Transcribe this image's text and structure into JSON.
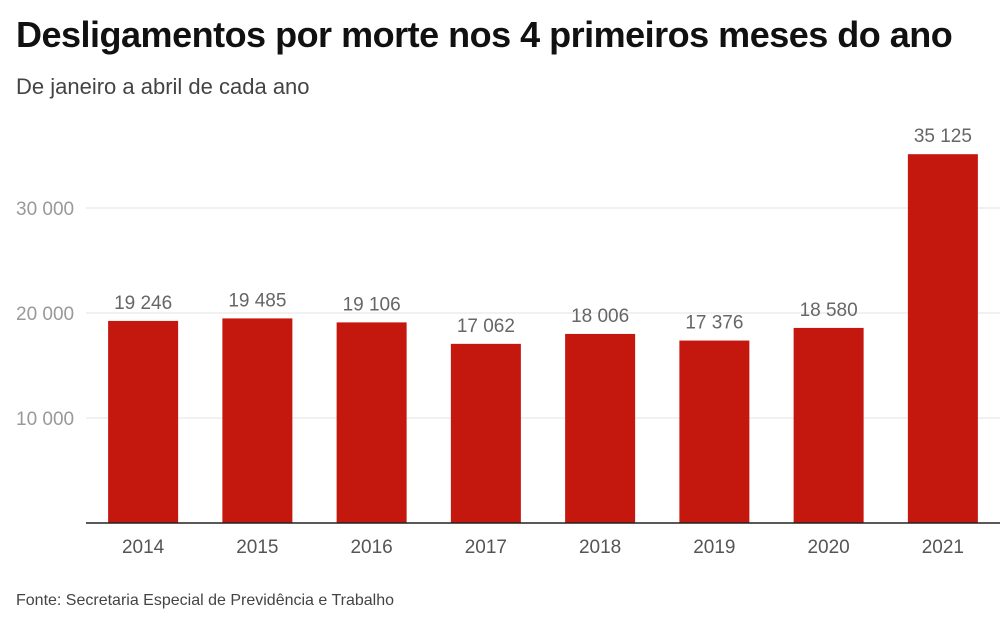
{
  "header": {
    "title": "Desligamentos por morte nos 4 primeiros meses do ano",
    "subtitle": "De janeiro a abril de cada ano"
  },
  "footer": {
    "source": "Fonte: Secretaria Especial de Previdência e Trabalho"
  },
  "colors": {
    "bar": "#c4180f",
    "grid": "#e3e3e3",
    "axis": "#222222"
  },
  "chart_data": {
    "type": "bar",
    "title": "Desligamentos por morte nos 4 primeiros meses do ano",
    "subtitle": "De janeiro a abril de cada ano",
    "xlabel": "",
    "ylabel": "",
    "categories": [
      "2014",
      "2015",
      "2016",
      "2017",
      "2018",
      "2019",
      "2020",
      "2021"
    ],
    "values": [
      19246,
      19485,
      19106,
      17062,
      18006,
      17376,
      18580,
      35125
    ],
    "value_labels": [
      "19 246",
      "19 485",
      "19 106",
      "17 062",
      "18 006",
      "17 376",
      "18 580",
      "35 125"
    ],
    "ylim": [
      0,
      36000
    ],
    "yticks": [
      10000,
      20000,
      30000
    ],
    "ytick_labels": [
      "10 000",
      "20 000",
      "30 000"
    ],
    "grid": true,
    "legend": "none"
  }
}
